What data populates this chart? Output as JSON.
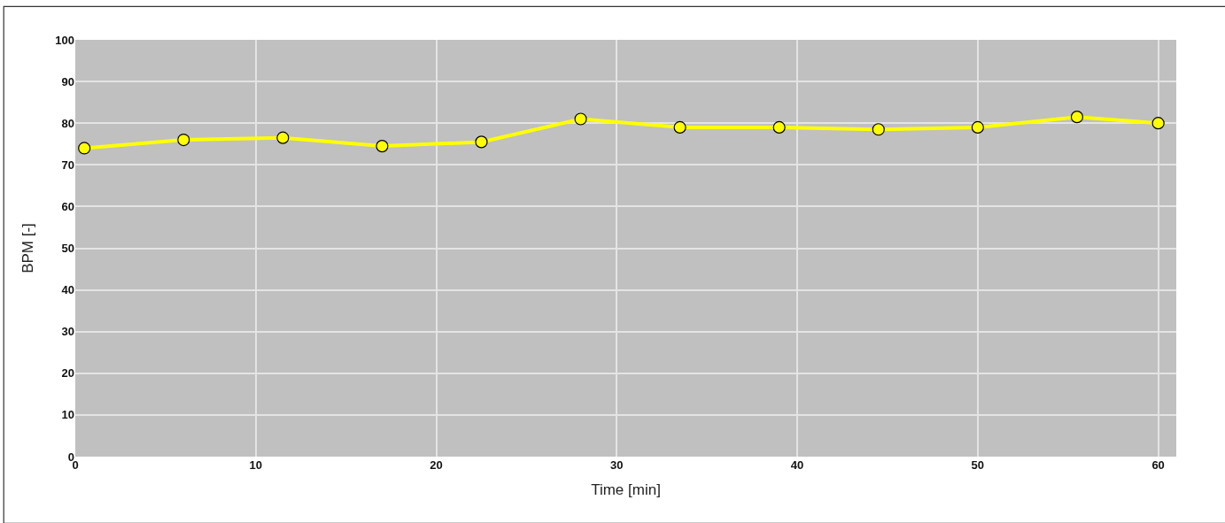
{
  "chart_data": {
    "type": "line",
    "xlabel": "Time [min]",
    "ylabel": "BPM [-]",
    "x": [
      0.5,
      6,
      11.5,
      17,
      22.5,
      28,
      33.5,
      39,
      44.5,
      50,
      55.5,
      60
    ],
    "series": [
      {
        "color": "#ffff00",
        "values": [
          74,
          76,
          76.5,
          74.5,
          75.5,
          81,
          79,
          79,
          78.5,
          79,
          81.5,
          80
        ]
      }
    ],
    "xlim": [
      0,
      61
    ],
    "xticks": [
      0,
      10,
      20,
      30,
      40,
      50,
      60
    ],
    "ylim": [
      0,
      100
    ],
    "yticks": [
      0,
      10,
      20,
      30,
      40,
      50,
      60,
      70,
      80,
      90,
      100
    ],
    "grid": true,
    "marker": "circle",
    "line_style": "solid"
  }
}
